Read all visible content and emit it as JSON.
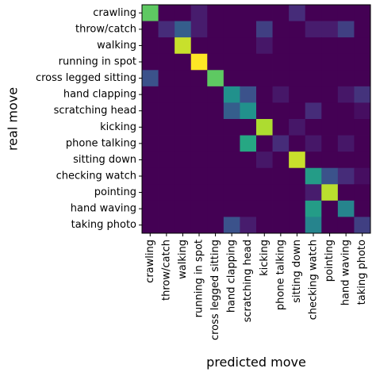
{
  "chart_data": {
    "type": "heatmap",
    "title": "",
    "xlabel": "predicted move",
    "ylabel": "real move",
    "rows": [
      "crawling",
      "throw/catch",
      "walking",
      "running in spot",
      "cross legged sitting",
      "hand clapping",
      "scratching head",
      "kicking",
      "phone talking",
      "sitting down",
      "checking watch",
      "pointing",
      "hand waving",
      "taking photo"
    ],
    "columns": [
      "crawling",
      "throw/catch",
      "walking",
      "running in spot",
      "cross legged sitting",
      "hand clapping",
      "scratching head",
      "kicking",
      "phone talking",
      "sitting down",
      "checking watch",
      "pointing",
      "hand waving",
      "taking photo"
    ],
    "colormap": "viridis",
    "value_range": [
      0,
      1
    ],
    "values": [
      [
        0.75,
        0.0,
        0.0,
        0.1,
        0.0,
        0.0,
        0.0,
        0.0,
        0.0,
        0.15,
        0.0,
        0.0,
        0.0,
        0.0
      ],
      [
        0.0,
        0.15,
        0.3,
        0.1,
        0.0,
        0.0,
        0.0,
        0.2,
        0.0,
        0.0,
        0.1,
        0.1,
        0.2,
        0.0
      ],
      [
        0.0,
        0.0,
        0.92,
        0.0,
        0.0,
        0.0,
        0.0,
        0.08,
        0.0,
        0.0,
        0.0,
        0.0,
        0.0,
        0.0
      ],
      [
        0.0,
        0.0,
        0.0,
        1.0,
        0.0,
        0.0,
        0.0,
        0.0,
        0.0,
        0.0,
        0.0,
        0.0,
        0.0,
        0.0
      ],
      [
        0.25,
        0.0,
        0.0,
        0.0,
        0.75,
        0.0,
        0.0,
        0.0,
        0.0,
        0.0,
        0.0,
        0.0,
        0.0,
        0.0
      ],
      [
        0.0,
        0.0,
        0.0,
        0.0,
        0.0,
        0.5,
        0.25,
        0.0,
        0.08,
        0.0,
        0.0,
        0.0,
        0.08,
        0.17
      ],
      [
        0.0,
        0.0,
        0.0,
        0.0,
        0.0,
        0.3,
        0.5,
        0.0,
        0.0,
        0.0,
        0.15,
        0.0,
        0.0,
        0.05
      ],
      [
        0.0,
        0.0,
        0.0,
        0.0,
        0.0,
        0.0,
        0.0,
        0.88,
        0.0,
        0.08,
        0.0,
        0.0,
        0.0,
        0.0
      ],
      [
        0.0,
        0.0,
        0.0,
        0.0,
        0.0,
        0.0,
        0.6,
        0.0,
        0.15,
        0.0,
        0.08,
        0.0,
        0.08,
        0.0
      ],
      [
        0.0,
        0.0,
        0.0,
        0.0,
        0.0,
        0.0,
        0.0,
        0.08,
        0.0,
        0.92,
        0.0,
        0.0,
        0.0,
        0.0
      ],
      [
        0.0,
        0.0,
        0.0,
        0.0,
        0.0,
        0.0,
        0.0,
        0.0,
        0.0,
        0.0,
        0.55,
        0.25,
        0.15,
        0.05
      ],
      [
        0.0,
        0.0,
        0.0,
        0.0,
        0.0,
        0.0,
        0.0,
        0.0,
        0.0,
        0.0,
        0.1,
        0.9,
        0.0,
        0.0
      ],
      [
        0.0,
        0.0,
        0.0,
        0.0,
        0.0,
        0.0,
        0.0,
        0.0,
        0.0,
        0.0,
        0.55,
        0.0,
        0.45,
        0.0
      ],
      [
        0.0,
        0.0,
        0.0,
        0.0,
        0.0,
        0.25,
        0.1,
        0.0,
        0.0,
        0.0,
        0.45,
        0.0,
        0.0,
        0.2
      ]
    ]
  }
}
